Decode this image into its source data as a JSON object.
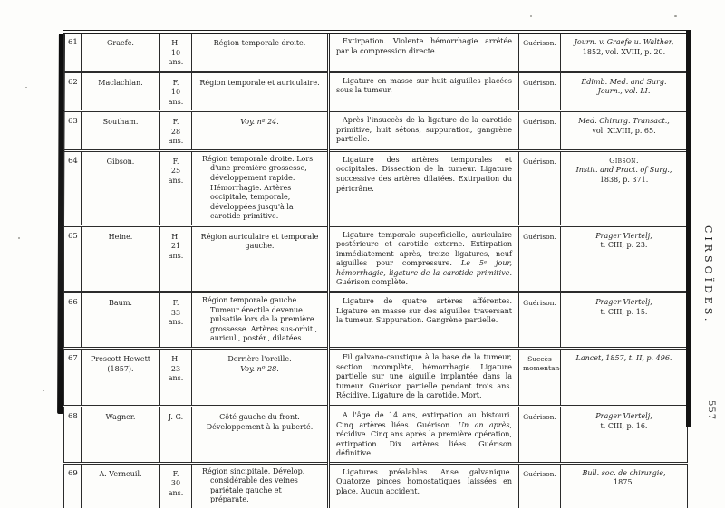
{
  "page": {
    "margin_label": "CIRSOÏDES.",
    "page_number": "557"
  },
  "table": {
    "rows": [
      {
        "num": "61",
        "name": "Graefe.",
        "sex_age": "H.\n10 ans.",
        "region": [
          {
            "t": "Région temporale droite."
          }
        ],
        "operation": [
          {
            "t": "Extirpation. Violente hémorrhagie arrêtée par la compression directe."
          }
        ],
        "outcome": "Guérison.",
        "reference": [
          {
            "t": "Journ. v. Graefe u. Walther,",
            "s": "i"
          },
          {
            "t": "1852, vol. XVIII, p. 20.",
            "s": "r"
          }
        ]
      },
      {
        "num": "62",
        "name": "Maclachlan.",
        "sex_age": "F.\n10 ans.",
        "region": [
          {
            "t": "Région temporale et auriculaire."
          }
        ],
        "operation": [
          {
            "t": "Ligature en masse sur huit aiguilles placées sous la tumeur."
          }
        ],
        "outcome": "Guérison.",
        "reference": [
          {
            "t": "Édimb. Med. and Surg.",
            "s": "i"
          },
          {
            "t": "Journ., vol. LI.",
            "s": "i"
          }
        ]
      },
      {
        "num": "63",
        "name": "Southam.",
        "sex_age": "F.\n28 ans.",
        "region": [
          {
            "t": "Voy. nº 24.",
            "s": "i"
          }
        ],
        "operation": [
          {
            "t": "Après l'insuccès de la ligature de la carotide primitive, huit sétons, suppuration, gangrène partielle."
          }
        ],
        "outcome": "Guérison.",
        "reference": [
          {
            "t": "Med. Chirurg. Transact.,",
            "s": "i"
          },
          {
            "t": "vol. XLVIII, p. 65.",
            "s": "r"
          }
        ]
      },
      {
        "num": "64",
        "name": "Gibson.",
        "sex_age": "F.\n25 ans.",
        "region": [
          {
            "t": "Région temporale droite. Lors d'une première grossesse, développement rapide. Hémorrhagie. Artères occipitale, temporale, développées jusqu'à la carotide primitive."
          }
        ],
        "operation": [
          {
            "t": "Ligature des artères temporales et occipitales. Dissection de la tumeur. Ligature successive des artères dilatées. Extirpation du péricrâne."
          }
        ],
        "outcome": "Guérison.",
        "reference": [
          {
            "t": "Gibson.",
            "s": "sc"
          },
          {
            "t": "Instit. and Pract. of Surg.,",
            "s": "i"
          },
          {
            "t": "1838, p. 371.",
            "s": "r"
          }
        ]
      },
      {
        "num": "65",
        "name": "Heine.",
        "sex_age": "H.\n21 ans.",
        "region": [
          {
            "t": "Région auriculaire et temporale gauche."
          }
        ],
        "operation": [
          {
            "t": "Ligature temporale superficielle, auriculaire postérieure et carotide externe. Extirpation immédiatement après, treize ligatures, neuf aiguilles pour compressure. "
          },
          {
            "t": "Le 5ᵉ jour, hémorrhagie, ligature de la carotide primitive.",
            "s": "i"
          },
          {
            "t": " Guérison complète."
          }
        ],
        "outcome": "Guérison.",
        "reference": [
          {
            "t": "Prager Viertelj,",
            "s": "i"
          },
          {
            "t": "t. CIII, p. 23.",
            "s": "r"
          }
        ]
      },
      {
        "num": "66",
        "name": "Baum.",
        "sex_age": "F.\n33 ans.",
        "region": [
          {
            "t": "Région temporale gauche. Tumeur érectile devenue pulsatile lors de la première grossesse. Artères sus-orbit., auricul., postér., dilatées."
          }
        ],
        "operation": [
          {
            "t": "Ligature de quatre artères afférentes. Ligature en masse sur des aiguilles traversant la tumeur. Suppuration. Gangrène partielle."
          }
        ],
        "outcome": "Guérison.",
        "reference": [
          {
            "t": "Prager Viertelj,",
            "s": "i"
          },
          {
            "t": "t. CIII, p. 15.",
            "s": "r"
          }
        ]
      },
      {
        "num": "67",
        "name": "Prescott Hewett\n(1857).",
        "sex_age": "H.\n23 ans.",
        "region": [
          {
            "t": "Derrière l'oreille.\n"
          },
          {
            "t": "Voy. nº 28.",
            "s": "i"
          }
        ],
        "operation": [
          {
            "t": "Fil galvano-caustique à la base de la tumeur, section incomplète, hémorrhagie. Ligature partielle sur une aiguille implantée dans la tumeur. Guérison partielle pendant trois ans. Récidive. Ligature de la carotide. Mort."
          }
        ],
        "outcome": "Succès\nmomentané.",
        "reference": [
          {
            "t": "Lancet, 1857, t. II, p. 496.",
            "s": "i"
          }
        ]
      },
      {
        "num": "68",
        "name": "Wagner.",
        "sex_age": "J. G.",
        "region": [
          {
            "t": "Côté gauche du front. Développement à la puberté."
          }
        ],
        "operation": [
          {
            "t": "A l'âge de 14 ans, extirpation au bistouri. Cinq artères liées. Guérison. "
          },
          {
            "t": "Un an après",
            "s": "i"
          },
          {
            "t": ", récidive. Cinq ans après la première opération, extirpation. Dix artères liées. Guérison définitive."
          }
        ],
        "outcome": "Guérison.",
        "reference": [
          {
            "t": "Prager Viertelj,",
            "s": "i"
          },
          {
            "t": "t. CIII, p. 16.",
            "s": "r"
          }
        ]
      },
      {
        "num": "69",
        "name": "A. Verneuil.",
        "sex_age": "F.\n30 ans.",
        "region": [
          {
            "t": "Région sincipitale. Dévelop. considérable des veines pariétale gauche et préparate."
          }
        ],
        "operation": [
          {
            "t": "Ligatures préalables. Anse galvanique. Quatorze pinces homostatiques laissées en place. Aucun accident."
          }
        ],
        "outcome": "Guérison.",
        "reference": [
          {
            "t": "Bull. soc. de chirurgie,",
            "s": "i"
          },
          {
            "t": "1875.",
            "s": "r"
          }
        ]
      }
    ]
  }
}
